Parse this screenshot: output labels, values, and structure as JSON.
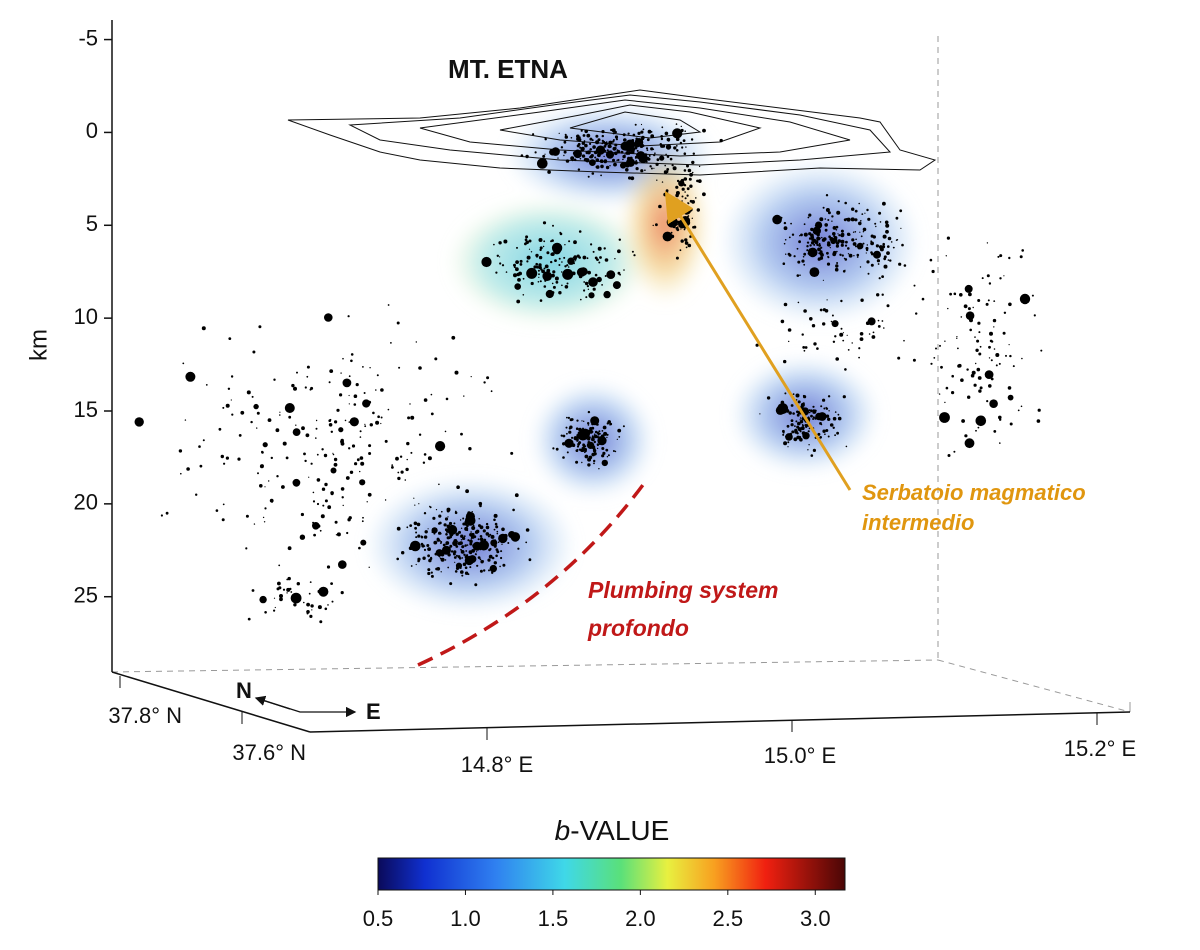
{
  "figure": {
    "title": "MT. ETNA",
    "depth_axis": {
      "label": "km",
      "lim": [
        -6,
        29
      ],
      "ticks": [
        -5,
        0,
        5,
        10,
        15,
        20,
        25
      ]
    },
    "latitude_labels": [
      "37.8° N",
      "37.6° N"
    ],
    "longitude_labels": [
      "14.8° E",
      "15.0° E",
      "15.2° E"
    ],
    "compass": {
      "north": "N",
      "east": "E"
    },
    "annotations": {
      "intermediate_reservoir": [
        "Serbatoio magmatico",
        "intermedio"
      ],
      "deep_plumbing": [
        "Plumbing system",
        "profondo"
      ]
    },
    "colorbar": {
      "title": {
        "italic": "b",
        "rest": "-VALUE"
      },
      "lim": [
        0.5,
        3.17
      ],
      "ticks": [
        {
          "value": 0.5,
          "label": "0.5"
        },
        {
          "value": 1.0,
          "label": "1.0"
        },
        {
          "value": 1.5,
          "label": "1.5"
        },
        {
          "value": 2.0,
          "label": "2.0"
        },
        {
          "value": 2.5,
          "label": "2.5"
        },
        {
          "value": 3.0,
          "label": "3.0"
        }
      ]
    }
  }
}
